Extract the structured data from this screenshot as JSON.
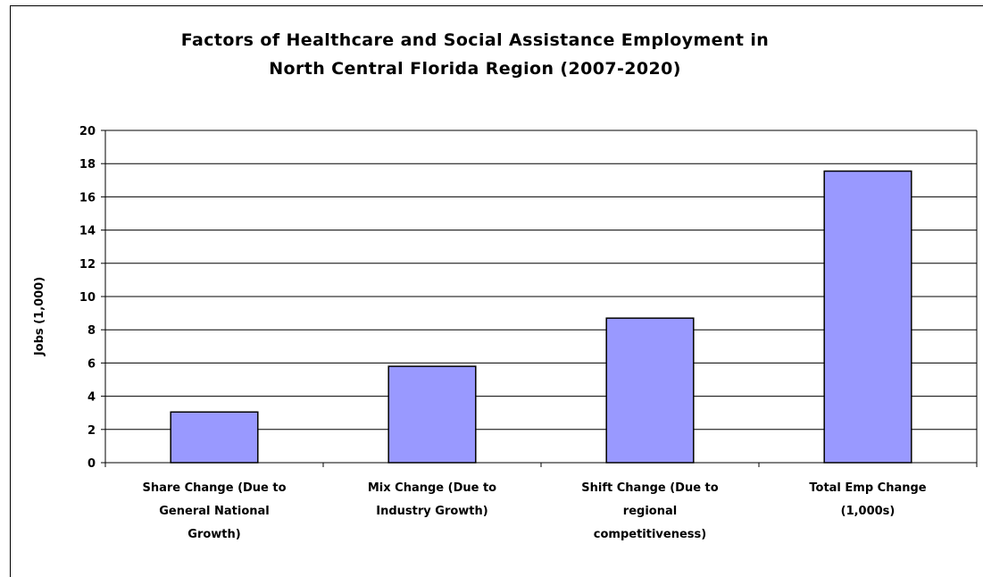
{
  "chart_data": {
    "type": "bar",
    "title_lines": [
      "Factors of Healthcare and Social Assistance Employment in",
      "North Central Florida Region (2007-2020)"
    ],
    "xlabel": "",
    "ylabel": "Jobs (1,000)",
    "ylim": [
      0,
      20
    ],
    "yticks": [
      0,
      2,
      4,
      6,
      8,
      10,
      12,
      14,
      16,
      18,
      20
    ],
    "grid": true,
    "legend": "none",
    "categories": [
      [
        "Share Change (Due to",
        "General National",
        "Growth)"
      ],
      [
        "Mix Change (Due to",
        "Industry Growth)"
      ],
      [
        "Shift Change (Due to",
        "regional",
        "competitiveness)"
      ],
      [
        "Total Emp Change",
        "(1,000s)"
      ]
    ],
    "values": [
      3.05,
      5.8,
      8.7,
      17.55
    ],
    "bar_color": "#9999ff",
    "bar_border_color": "#000000"
  }
}
